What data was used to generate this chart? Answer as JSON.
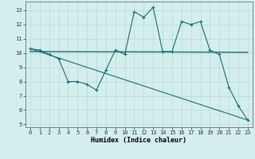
{
  "line1_x": [
    0,
    1,
    2,
    3,
    4,
    5,
    6,
    7,
    8,
    9,
    10,
    11,
    12,
    13,
    14,
    15,
    16,
    17,
    18,
    19,
    20,
    21,
    22,
    23
  ],
  "line1_y": [
    10.3,
    10.2,
    9.9,
    9.6,
    8.0,
    8.0,
    7.8,
    7.4,
    8.8,
    10.2,
    9.9,
    12.9,
    12.5,
    13.2,
    10.1,
    10.1,
    12.2,
    12.0,
    12.2,
    10.2,
    9.9,
    7.6,
    6.3,
    5.3
  ],
  "line2_x": [
    0,
    23
  ],
  "line2_y": [
    10.1,
    10.05
  ],
  "line3_x": [
    0,
    23
  ],
  "line3_y": [
    10.3,
    5.3
  ],
  "color": "#1a6b6b",
  "bg_color": "#d4eeee",
  "grid_color": "#b8d8d8",
  "xlabel": "Humidex (Indice chaleur)",
  "xlim": [
    -0.5,
    23.5
  ],
  "ylim": [
    4.8,
    13.6
  ],
  "yticks": [
    5,
    6,
    7,
    8,
    9,
    10,
    11,
    12,
    13
  ],
  "xticks": [
    0,
    1,
    2,
    3,
    4,
    5,
    6,
    7,
    8,
    9,
    10,
    11,
    12,
    13,
    14,
    15,
    16,
    17,
    18,
    19,
    20,
    21,
    22,
    23
  ],
  "tick_fontsize": 5.0,
  "xlabel_fontsize": 6.0
}
